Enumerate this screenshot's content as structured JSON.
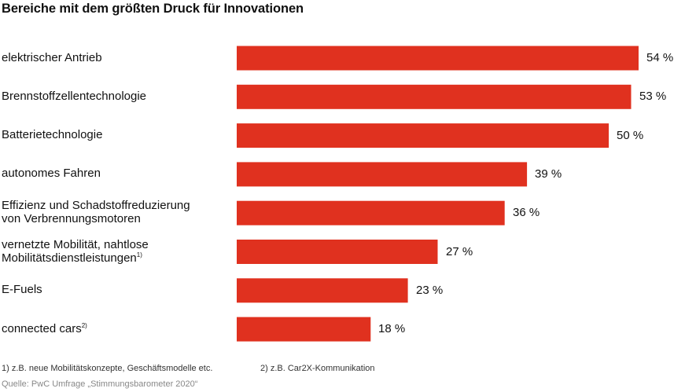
{
  "chart_data": {
    "type": "bar",
    "orientation": "horizontal",
    "title": "Bereiche mit dem größten Druck für Innovationen",
    "categories": [
      {
        "label": [
          "elektrischer Antrieb"
        ],
        "footnote": ""
      },
      {
        "label": [
          "Brennstoffzellentechnologie"
        ],
        "footnote": ""
      },
      {
        "label": [
          "Batterietechnologie"
        ],
        "footnote": ""
      },
      {
        "label": [
          "autonomes Fahren"
        ],
        "footnote": ""
      },
      {
        "label": [
          "Effizienz und Schadstoffreduzierung",
          "von Verbrennungsmotoren"
        ],
        "footnote": ""
      },
      {
        "label": [
          "vernetzte Mobilität, nahtlose",
          "Mobilitätsdienstleistungen"
        ],
        "footnote": "1)"
      },
      {
        "label": [
          "E-Fuels"
        ],
        "footnote": ""
      },
      {
        "label": [
          "connected cars"
        ],
        "footnote": "2)"
      }
    ],
    "values": [
      54,
      53,
      50,
      39,
      36,
      27,
      23,
      18
    ],
    "value_labels": [
      "54 %",
      "53 %",
      "50 %",
      "39 %",
      "36 %",
      "27 %",
      "23 %",
      "18 %"
    ],
    "unit": "%",
    "xlabel": "",
    "ylabel": "",
    "xlim": [
      0,
      54
    ],
    "grid": false,
    "legend": "none",
    "bar_color": "#e0311f"
  },
  "footnotes": {
    "note1": "1) z.B. neue Mobilitätskonzepte, Geschäftsmodelle etc.",
    "note2": "2) z.B. Car2X-Kommunikation"
  },
  "source": "Quelle: PwC Umfrage „Stimmungsbarometer 2020“"
}
